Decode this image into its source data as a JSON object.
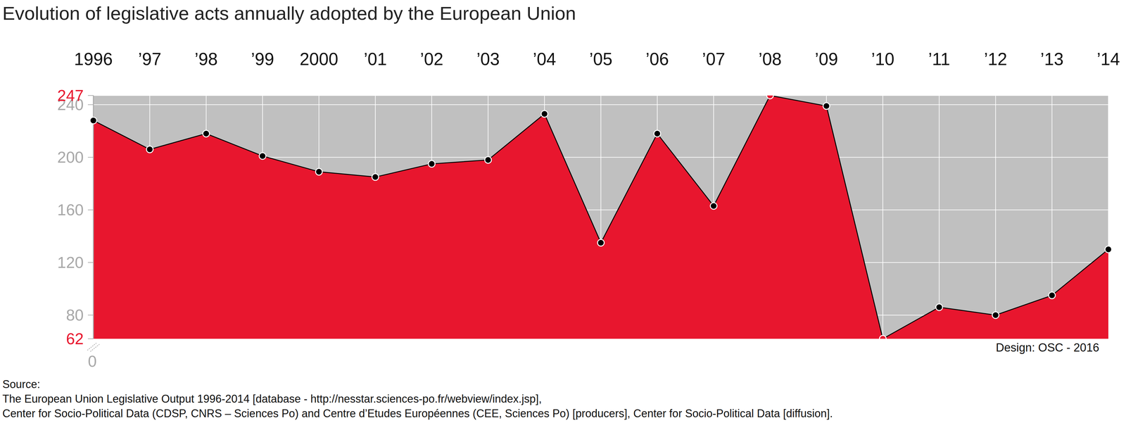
{
  "chart_data": {
    "type": "area",
    "title": "Evolution of legislative acts annually adopted by the European Union",
    "categories": [
      "1996",
      "’97",
      "’98",
      "’99",
      "2000",
      "’01",
      "’02",
      "’03",
      "’04",
      "’05",
      "’06",
      "’07",
      "’08",
      "’09",
      "’10",
      "’11",
      "’12",
      "’13",
      "’14"
    ],
    "values": [
      228,
      206,
      218,
      201,
      189,
      185,
      195,
      198,
      233,
      135,
      218,
      163,
      247,
      239,
      62,
      86,
      80,
      95,
      130
    ],
    "color": "#e8162e",
    "colors": [
      "#000000",
      "#000000",
      "#000000",
      "#000000",
      "#000000",
      "#000000",
      "#000000",
      "#000000",
      "#000000",
      "#000000",
      "#000000",
      "#000000",
      "#e8162e",
      "#000000",
      "#e8162e",
      "#000000",
      "#000000",
      "#000000",
      "#000000"
    ],
    "marker": "circle",
    "line_style": "solid",
    "ylim": [
      62,
      247
    ],
    "yticks": [
      62,
      80,
      120,
      160,
      200,
      240,
      247
    ],
    "grid": true,
    "annotations": {
      "axis_break": "0",
      "credit": "Design: OSC - 2016",
      "source": [
        "Source:",
        "The European Union Legislative Output 1996-2014 [database - http://nesstar.sciences-po.fr/webview/index.jsp],",
        "Center for Socio-Political Data (CDSP, CNRS – Sciences Po) and Centre d’Etudes Européennes (CEE, Sciences Po) [producers], Center for Socio-Political Data [diffusion]."
      ]
    }
  }
}
